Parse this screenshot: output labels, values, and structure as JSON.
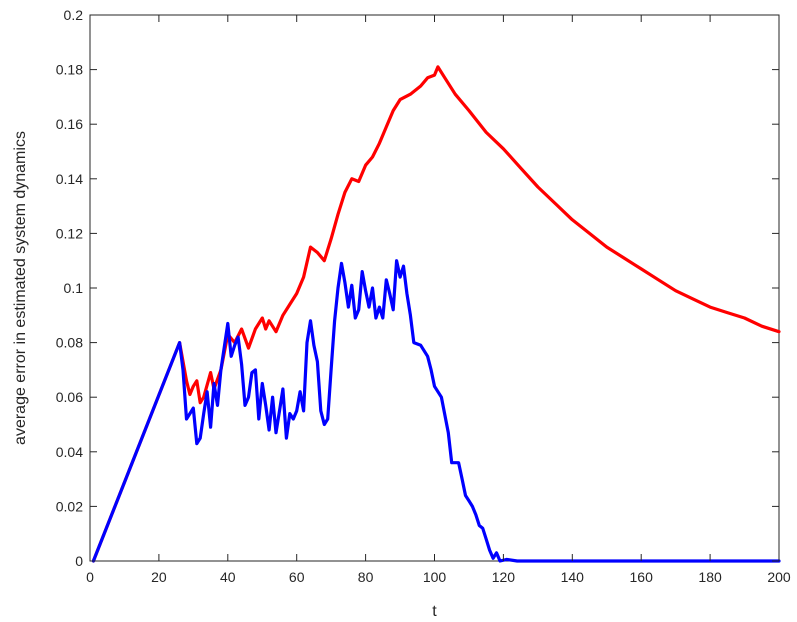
{
  "chart_data": {
    "type": "line",
    "title": "",
    "xlabel": "t",
    "ylabel": "average error in estimated system dynamics",
    "xlim": [
      0,
      200
    ],
    "ylim": [
      0,
      0.2
    ],
    "xticks": [
      0,
      20,
      40,
      60,
      80,
      100,
      120,
      140,
      160,
      180,
      200
    ],
    "yticks": [
      0,
      0.02,
      0.04,
      0.06,
      0.08,
      0.1,
      0.12,
      0.14,
      0.16,
      0.18,
      0.2
    ],
    "xtick_labels": [
      "0",
      "20",
      "40",
      "60",
      "80",
      "100",
      "120",
      "140",
      "160",
      "180",
      "200"
    ],
    "ytick_labels": [
      "0",
      "0.02",
      "0.04",
      "0.06",
      "0.08",
      "0.1",
      "0.12",
      "0.14",
      "0.16",
      "0.18",
      "0.2"
    ],
    "grid": false,
    "legend": false,
    "series": [
      {
        "color": "#ff0000",
        "points": [
          [
            1,
            0
          ],
          [
            26,
            0.08
          ],
          [
            28,
            0.066
          ],
          [
            29,
            0.061
          ],
          [
            30,
            0.064
          ],
          [
            31,
            0.066
          ],
          [
            32,
            0.058
          ],
          [
            33,
            0.06
          ],
          [
            35,
            0.069
          ],
          [
            36,
            0.063
          ],
          [
            38,
            0.07
          ],
          [
            40,
            0.083
          ],
          [
            42,
            0.08
          ],
          [
            44,
            0.085
          ],
          [
            46,
            0.078
          ],
          [
            48,
            0.085
          ],
          [
            50,
            0.089
          ],
          [
            51,
            0.085
          ],
          [
            52,
            0.088
          ],
          [
            54,
            0.084
          ],
          [
            56,
            0.09
          ],
          [
            58,
            0.094
          ],
          [
            60,
            0.098
          ],
          [
            62,
            0.104
          ],
          [
            64,
            0.115
          ],
          [
            66,
            0.113
          ],
          [
            68,
            0.11
          ],
          [
            70,
            0.118
          ],
          [
            72,
            0.127
          ],
          [
            74,
            0.135
          ],
          [
            76,
            0.14
          ],
          [
            78,
            0.139
          ],
          [
            80,
            0.145
          ],
          [
            82,
            0.148
          ],
          [
            84,
            0.153
          ],
          [
            86,
            0.159
          ],
          [
            88,
            0.165
          ],
          [
            90,
            0.169
          ],
          [
            93,
            0.171
          ],
          [
            96,
            0.174
          ],
          [
            98,
            0.177
          ],
          [
            100,
            0.178
          ],
          [
            101,
            0.181
          ],
          [
            103,
            0.177
          ],
          [
            106,
            0.171
          ],
          [
            110,
            0.165
          ],
          [
            115,
            0.157
          ],
          [
            120,
            0.151
          ],
          [
            125,
            0.144
          ],
          [
            130,
            0.137
          ],
          [
            135,
            0.131
          ],
          [
            140,
            0.125
          ],
          [
            145,
            0.12
          ],
          [
            150,
            0.115
          ],
          [
            155,
            0.111
          ],
          [
            160,
            0.107
          ],
          [
            165,
            0.103
          ],
          [
            170,
            0.099
          ],
          [
            175,
            0.096
          ],
          [
            180,
            0.093
          ],
          [
            185,
            0.091
          ],
          [
            190,
            0.089
          ],
          [
            195,
            0.086
          ],
          [
            200,
            0.084
          ]
        ]
      },
      {
        "color": "#0000ff",
        "points": [
          [
            1,
            0
          ],
          [
            26,
            0.08
          ],
          [
            27,
            0.07
          ],
          [
            28,
            0.052
          ],
          [
            29,
            0.054
          ],
          [
            30,
            0.056
          ],
          [
            31,
            0.043
          ],
          [
            32,
            0.045
          ],
          [
            33,
            0.054
          ],
          [
            34,
            0.062
          ],
          [
            35,
            0.049
          ],
          [
            36,
            0.065
          ],
          [
            37,
            0.057
          ],
          [
            38,
            0.07
          ],
          [
            40,
            0.087
          ],
          [
            41,
            0.075
          ],
          [
            42,
            0.079
          ],
          [
            43,
            0.082
          ],
          [
            44,
            0.072
          ],
          [
            45,
            0.057
          ],
          [
            46,
            0.06
          ],
          [
            47,
            0.069
          ],
          [
            48,
            0.07
          ],
          [
            49,
            0.052
          ],
          [
            50,
            0.065
          ],
          [
            51,
            0.057
          ],
          [
            52,
            0.048
          ],
          [
            53,
            0.06
          ],
          [
            54,
            0.047
          ],
          [
            55,
            0.055
          ],
          [
            56,
            0.063
          ],
          [
            57,
            0.045
          ],
          [
            58,
            0.054
          ],
          [
            59,
            0.052
          ],
          [
            60,
            0.055
          ],
          [
            61,
            0.062
          ],
          [
            62,
            0.055
          ],
          [
            63,
            0.08
          ],
          [
            64,
            0.088
          ],
          [
            65,
            0.079
          ],
          [
            66,
            0.073
          ],
          [
            67,
            0.055
          ],
          [
            68,
            0.05
          ],
          [
            69,
            0.052
          ],
          [
            70,
            0.07
          ],
          [
            71,
            0.088
          ],
          [
            72,
            0.1
          ],
          [
            73,
            0.109
          ],
          [
            74,
            0.102
          ],
          [
            75,
            0.093
          ],
          [
            76,
            0.101
          ],
          [
            77,
            0.089
          ],
          [
            78,
            0.092
          ],
          [
            79,
            0.106
          ],
          [
            80,
            0.099
          ],
          [
            81,
            0.093
          ],
          [
            82,
            0.1
          ],
          [
            83,
            0.089
          ],
          [
            84,
            0.093
          ],
          [
            85,
            0.089
          ],
          [
            86,
            0.103
          ],
          [
            87,
            0.098
          ],
          [
            88,
            0.092
          ],
          [
            89,
            0.11
          ],
          [
            90,
            0.104
          ],
          [
            91,
            0.108
          ],
          [
            92,
            0.098
          ],
          [
            93,
            0.09
          ],
          [
            94,
            0.08
          ],
          [
            96,
            0.079
          ],
          [
            98,
            0.075
          ],
          [
            99,
            0.07
          ],
          [
            100,
            0.064
          ],
          [
            102,
            0.06
          ],
          [
            104,
            0.047
          ],
          [
            105,
            0.036
          ],
          [
            107,
            0.036
          ],
          [
            108,
            0.03
          ],
          [
            109,
            0.024
          ],
          [
            110,
            0.022
          ],
          [
            111,
            0.02
          ],
          [
            112,
            0.017
          ],
          [
            113,
            0.013
          ],
          [
            114,
            0.012
          ],
          [
            115,
            0.008
          ],
          [
            116,
            0.004
          ],
          [
            117,
            0.001
          ],
          [
            118,
            0.003
          ],
          [
            119,
            0.0
          ],
          [
            121,
            0.0006
          ],
          [
            124,
            0.0
          ],
          [
            200,
            0.0
          ]
        ]
      }
    ]
  }
}
